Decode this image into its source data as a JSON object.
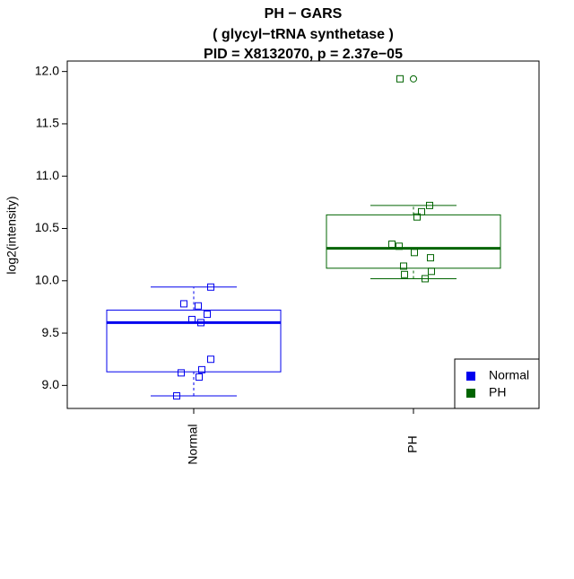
{
  "chart_data": {
    "type": "box",
    "title": [
      "PH − GARS",
      "( glycyl−tRNA synthetase )",
      "PID = X8132070, p = 2.37e−05"
    ],
    "y_label": "log2(intensity)",
    "ylim": [
      8.78,
      12.1
    ],
    "yticks": [
      {
        "value": 9,
        "label": "9.0"
      },
      {
        "value": 9.5,
        "label": "9.5"
      },
      {
        "value": 10,
        "label": "10.0"
      },
      {
        "value": 10.5,
        "label": "10.5"
      },
      {
        "value": 11,
        "label": "11.0"
      },
      {
        "value": 11.5,
        "label": "11.5"
      },
      {
        "value": 12,
        "label": "12.0"
      }
    ],
    "legend_position": "bottom-right",
    "series": [
      {
        "name": "Normal",
        "color": "#0000ee",
        "whisker_low": 8.9,
        "q1": 9.13,
        "median": 9.6,
        "q3": 9.72,
        "whisker_high": 9.94,
        "values": [
          9.94,
          9.78,
          9.76,
          9.68,
          9.63,
          9.6,
          9.25,
          9.15,
          9.12,
          9.08,
          8.9
        ],
        "outliers": []
      },
      {
        "name": "PH",
        "color": "#006400",
        "whisker_low": 10.02,
        "q1": 10.12,
        "median": 10.31,
        "q3": 10.63,
        "whisker_high": 10.72,
        "values": [
          10.72,
          10.66,
          10.61,
          10.35,
          10.33,
          10.27,
          10.22,
          10.14,
          10.09,
          10.06,
          10.02,
          11.93
        ],
        "outliers": [
          11.93
        ]
      }
    ]
  }
}
